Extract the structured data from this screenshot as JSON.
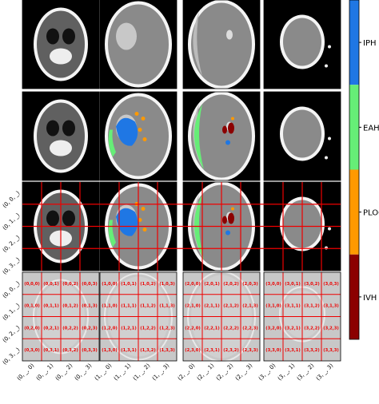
{
  "legend": [
    {
      "name": "IPH",
      "color": "#1f77e4"
    },
    {
      "name": "EAH",
      "color": "#66ee77"
    },
    {
      "name": "PLOC",
      "color": "#ff9900"
    },
    {
      "name": "IVH",
      "color": "#8b0000"
    }
  ],
  "row_labels": {
    "grid": [
      "(0, 0, _)",
      "(0, 1, _)",
      "(0, 2, _)",
      "(0, 3, _)"
    ],
    "cells": [
      "(0, 0, _)",
      "(0, 1, _)",
      "(0, 2, _)",
      "(0, 3, _)"
    ]
  },
  "column_labels": [
    [
      "(0, _, 0)",
      "(0, _, 1)",
      "(0, _, 2)",
      "(0, _, 3)"
    ],
    [
      "(1, _, 0)",
      "(1, _, 1)",
      "(1, _, 2)",
      "(1, _, 3)"
    ],
    [
      "(2, _, 0)",
      "(2, _, 1)",
      "(2, _, 2)",
      "(2, _, 3)"
    ],
    [
      "(3, _, 0)",
      "(3, _, 1)",
      "(3, _, 2)",
      "(3, _, 3)"
    ]
  ],
  "cell_labels": [
    [
      [
        "(0,0,0)",
        "(0,0,1)",
        "(0,0,2)",
        "(0,0,3)"
      ],
      [
        "(0,1,0)",
        "(0,1,1)",
        "(0,1,2)",
        "(0,1,3)"
      ],
      [
        "(0,2,0)",
        "(0,2,1)",
        "(0,2,2)",
        "(0,2,3)"
      ],
      [
        "(0,3,0)",
        "(0,3,1)",
        "(0,3,2)",
        "(0,3,3)"
      ]
    ],
    [
      [
        "(1,0,0)",
        "(1,0,1)",
        "(1,0,2)",
        "(1,0,3)"
      ],
      [
        "(1,1,0)",
        "(1,1,1)",
        "(1,1,2)",
        "(1,1,3)"
      ],
      [
        "(1,2,0)",
        "(1,2,1)",
        "(1,2,2)",
        "(1,2,3)"
      ],
      [
        "(1,3,0)",
        "(1,3,1)",
        "(1,3,2)",
        "(1,3,3)"
      ]
    ],
    [
      [
        "(2,0,0)",
        "(2,0,1)",
        "(2,0,2)",
        "(2,0,3)"
      ],
      [
        "(2,1,0)",
        "(2,1,1)",
        "(2,1,2)",
        "(2,1,3)"
      ],
      [
        "(2,2,0)",
        "(2,2,1)",
        "(2,2,2)",
        "(2,2,3)"
      ],
      [
        "(2,3,0)",
        "(2,3,1)",
        "(2,3,2)",
        "(2,3,3)"
      ]
    ],
    [
      [
        "(3,0,0)",
        "(3,0,1)",
        "(3,0,2)",
        "(3,0,3)"
      ],
      [
        "(3,1,0)",
        "(3,1,1)",
        "(3,1,2)",
        "(3,1,3)"
      ],
      [
        "(3,2,0)",
        "(3,2,1)",
        "(3,2,2)",
        "(3,2,3)"
      ],
      [
        "(3,3,0)",
        "(3,3,1)",
        "(3,3,2)",
        "(3,3,3)"
      ]
    ]
  ]
}
